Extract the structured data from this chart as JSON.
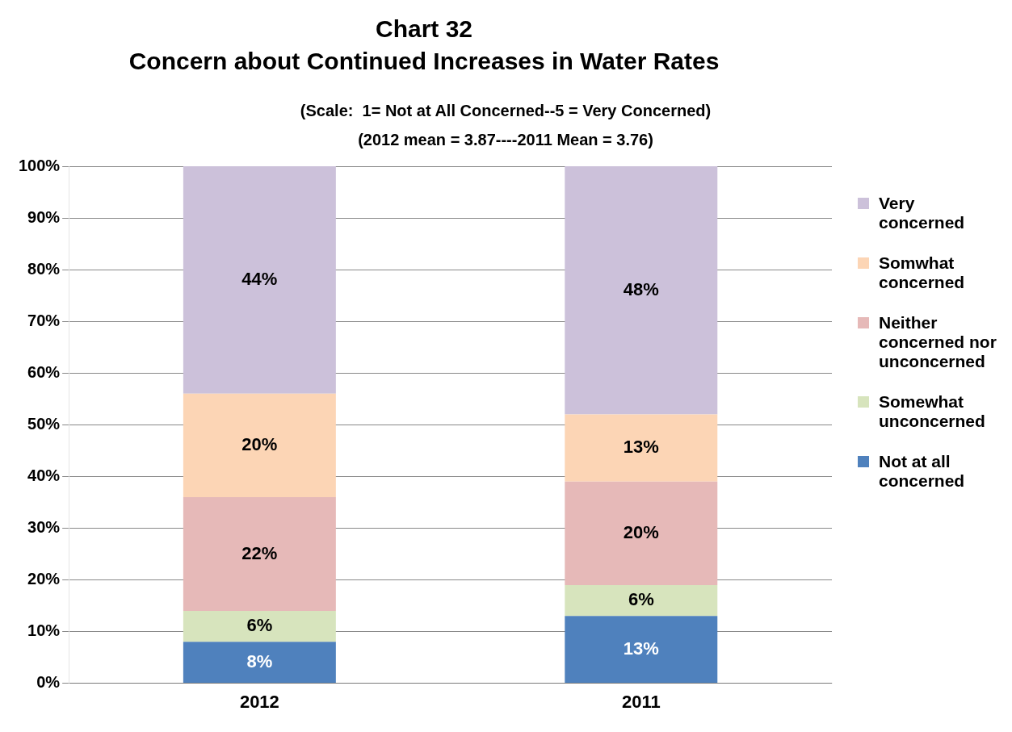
{
  "chart_data": {
    "type": "bar",
    "stacked": true,
    "title": "Chart 32",
    "subtitle": "Concern about Continued Increases in Water Rates",
    "annotations": [
      "(Scale:  1= Not at All Concerned--5 = Very Concerned)",
      "(2012 mean = 3.87----2011 Mean = 3.76)"
    ],
    "categories": [
      "2012",
      "2011"
    ],
    "series": [
      {
        "name": "Not at all concerned",
        "color": "#4f81bd",
        "values": [
          8,
          13
        ],
        "value_labels": [
          "8%",
          "13%"
        ]
      },
      {
        "name": "Somewhat unconcerned",
        "color": "#d7e4bd",
        "values": [
          6,
          6
        ],
        "value_labels": [
          "6%",
          "6%"
        ]
      },
      {
        "name": "Neither concerned nor unconcerned",
        "color": "#e6b9b8",
        "values": [
          22,
          20
        ],
        "value_labels": [
          "22%",
          "20%"
        ]
      },
      {
        "name": "Somwhat concerned",
        "color": "#fcd5b5",
        "values": [
          20,
          13
        ],
        "value_labels": [
          "20%",
          "13%"
        ]
      },
      {
        "name": "Very concerned",
        "color": "#ccc1da",
        "values": [
          44,
          48
        ],
        "value_labels": [
          "44%",
          "48%"
        ]
      }
    ],
    "ylim": [
      0,
      100
    ],
    "yticks": [
      {
        "value": 0,
        "label": "0%"
      },
      {
        "value": 10,
        "label": "10%"
      },
      {
        "value": 20,
        "label": "20%"
      },
      {
        "value": 30,
        "label": "30%"
      },
      {
        "value": 40,
        "label": "40%"
      },
      {
        "value": 50,
        "label": "50%"
      },
      {
        "value": 60,
        "label": "60%"
      },
      {
        "value": 70,
        "label": "70%"
      },
      {
        "value": 80,
        "label": "80%"
      },
      {
        "value": 90,
        "label": "90%"
      },
      {
        "value": 100,
        "label": "100%"
      }
    ],
    "grid": "y",
    "legend": "right"
  }
}
